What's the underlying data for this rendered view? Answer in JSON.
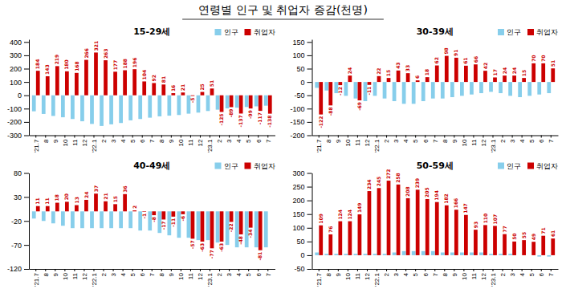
{
  "title": "연령별 인구 및 취업자 증감(천명)",
  "chart_data": [
    {
      "type": "bar",
      "title": "15-29세",
      "categories": [
        "'21.7",
        "8",
        "9",
        "10",
        "11",
        "12",
        "'22.1",
        "2",
        "3",
        "4",
        "5",
        "6",
        "7",
        "8",
        "9",
        "10",
        "11",
        "12",
        "'23.1",
        "2",
        "3",
        "4",
        "5",
        "6",
        "7"
      ],
      "series": [
        {
          "name": "인구",
          "color": "#87CEEB",
          "values": [
            -120,
            -140,
            -155,
            -165,
            -178,
            -195,
            -215,
            -230,
            -218,
            -208,
            -188,
            -178,
            -168,
            -158,
            -153,
            -148,
            -138,
            -130,
            -118,
            -108,
            -98,
            -93,
            -88,
            -83,
            -78
          ]
        },
        {
          "name": "취업자",
          "color": "#CC0000",
          "data_labels": true,
          "values": [
            184,
            143,
            219,
            180,
            168,
            266,
            321,
            263,
            177,
            188,
            196,
            104,
            92,
            81,
            16,
            21,
            -5,
            25,
            51,
            -125,
            -89,
            -137,
            -99,
            -117,
            -138
          ]
        }
      ],
      "ylim": [
        -300,
        420
      ],
      "yticks": [
        -300,
        -200,
        -100,
        0,
        100,
        200,
        300,
        400
      ],
      "legend": "upper right"
    },
    {
      "type": "bar",
      "title": "30-39세",
      "categories": [
        "'21.7",
        "8",
        "9",
        "10",
        "11",
        "12",
        "'22.1",
        "2",
        "3",
        "4",
        "5",
        "6",
        "7",
        "8",
        "9",
        "10",
        "11",
        "12",
        "'23.1",
        "2",
        "3",
        "4",
        "5",
        "6",
        "7"
      ],
      "series": [
        {
          "name": "인구",
          "color": "#87CEEB",
          "values": [
            -22,
            -32,
            -42,
            -52,
            -62,
            -72,
            -52,
            -62,
            -72,
            -82,
            -82,
            -72,
            -62,
            -62,
            -57,
            -52,
            -47,
            -42,
            -37,
            -42,
            -52,
            -57,
            -52,
            -47,
            -42
          ]
        },
        {
          "name": "취업자",
          "color": "#CC0000",
          "data_labels": true,
          "values": [
            -122,
            -88,
            -12,
            24,
            -69,
            -11,
            22,
            15,
            43,
            33,
            6,
            18,
            62,
            98,
            91,
            61,
            66,
            42,
            17,
            24,
            24,
            15,
            70,
            70,
            51
          ]
        }
      ],
      "ylim": [
        -200,
        160
      ],
      "yticks": [
        -200,
        -150,
        -100,
        -50,
        0,
        50,
        100,
        150
      ],
      "legend": "upper right"
    },
    {
      "type": "bar",
      "title": "40-49세",
      "categories": [
        "'21.7",
        "8",
        "9",
        "10",
        "11",
        "12",
        "'22.1",
        "2",
        "3",
        "4",
        "5",
        "6",
        "7",
        "8",
        "9",
        "10",
        "11",
        "12",
        "'23.1",
        "2",
        "3",
        "4",
        "5",
        "6",
        "7"
      ],
      "series": [
        {
          "name": "인구",
          "color": "#87CEEB",
          "values": [
            -15,
            -20,
            -25,
            -30,
            -35,
            -35,
            -35,
            -35,
            -35,
            -35,
            -35,
            -40,
            -40,
            -45,
            -50,
            -55,
            -55,
            -60,
            -60,
            -65,
            -70,
            -75,
            -75,
            -75,
            -75
          ]
        },
        {
          "name": "취업자",
          "color": "#CC0000",
          "data_labels": true,
          "values": [
            11,
            11,
            18,
            20,
            13,
            24,
            37,
            21,
            15,
            36,
            2,
            -1,
            -8,
            -17,
            -11,
            -6,
            -57,
            -63,
            -77,
            -63,
            -22,
            -48,
            -34,
            -81,
            0
          ],
          "value_labels": [
            "11",
            "11",
            "18",
            "20",
            "13",
            "24",
            "37",
            "21",
            "15",
            "36",
            "2",
            "-1",
            "-8",
            "-17",
            "-11",
            "-6",
            "-57",
            "-63",
            "-77",
            "-63",
            "-22",
            "-48",
            "-34",
            "-81",
            null
          ]
        }
      ],
      "ylim": [
        -120,
        80
      ],
      "yticks": [
        -120,
        -70,
        -20,
        30,
        80
      ],
      "legend": "upper right"
    },
    {
      "type": "bar",
      "title": "50-59세",
      "categories": [
        "'21.7",
        "8",
        "9",
        "10",
        "11",
        "12",
        "'22.1",
        "2",
        "3",
        "4",
        "5",
        "6",
        "7",
        "8",
        "9",
        "10",
        "11",
        "12",
        "'23.1",
        "2",
        "3",
        "4",
        "5",
        "6",
        "7"
      ],
      "series": [
        {
          "name": "인구",
          "color": "#87CEEB",
          "values": [
            10,
            5,
            5,
            5,
            5,
            5,
            5,
            5,
            10,
            15,
            15,
            15,
            15,
            10,
            10,
            10,
            10,
            10,
            5,
            5,
            5,
            0,
            0,
            -5,
            -5
          ]
        },
        {
          "name": "취업자",
          "color": "#CC0000",
          "data_labels": true,
          "values": [
            109,
            76,
            124,
            124,
            149,
            234,
            245,
            272,
            258,
            208,
            239,
            205,
            194,
            182,
            166,
            147,
            93,
            110,
            107,
            77,
            50,
            55,
            49,
            71,
            61
          ]
        }
      ],
      "ylim": [
        -50,
        300
      ],
      "yticks": [
        -50,
        0,
        50,
        100,
        150,
        200,
        250,
        300
      ],
      "legend": "upper right"
    }
  ]
}
